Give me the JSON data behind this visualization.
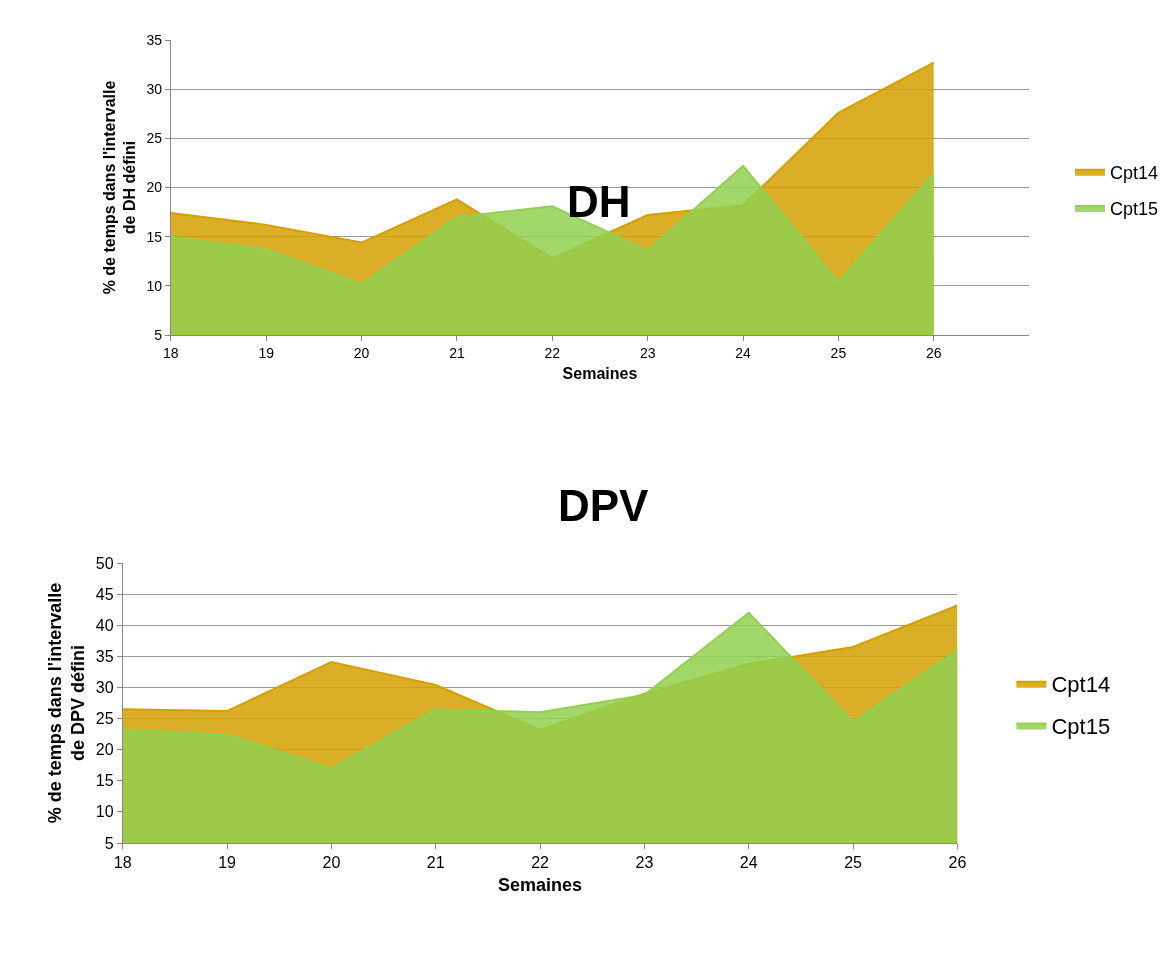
{
  "chart_data": [
    {
      "type": "area",
      "title": "DH",
      "xlabel": "Semaines",
      "ylabel": "% de temps dans l'intervalle de DH défini",
      "x": [
        18,
        19,
        20,
        21,
        22,
        23,
        24,
        25,
        26
      ],
      "xlim": [
        18,
        27
      ],
      "xticks": [
        18,
        19,
        20,
        21,
        22,
        23,
        24,
        25,
        26
      ],
      "ylim": [
        5,
        35
      ],
      "yticks": [
        5,
        10,
        15,
        20,
        25,
        30,
        35
      ],
      "grid": "y",
      "legend": "right",
      "series": [
        {
          "name": "Cpt14",
          "color": "#d4a000",
          "values": [
            17.4,
            16.2,
            14.4,
            18.8,
            12.8,
            17.2,
            18.2,
            27.6,
            32.7
          ]
        },
        {
          "name": "Cpt15",
          "color": "#92d050",
          "values": [
            15.0,
            13.7,
            10.2,
            17.0,
            18.1,
            13.6,
            22.2,
            10.4,
            21.4
          ]
        }
      ]
    },
    {
      "type": "area",
      "title": "DPV",
      "xlabel": "Semaines",
      "ylabel": "% de temps dans l'intervalle de DPV défini",
      "x": [
        18,
        19,
        20,
        21,
        22,
        23,
        24,
        25,
        26
      ],
      "xlim": [
        18,
        26
      ],
      "xticks": [
        18,
        19,
        20,
        21,
        22,
        23,
        24,
        25,
        26
      ],
      "ylim": [
        5,
        50
      ],
      "yticks": [
        5,
        10,
        15,
        20,
        25,
        30,
        35,
        40,
        45,
        50
      ],
      "grid": "y",
      "legend": "right",
      "series": [
        {
          "name": "Cpt14",
          "color": "#d4a000",
          "values": [
            26.5,
            26.2,
            34.1,
            30.4,
            23.2,
            29.0,
            33.8,
            36.5,
            43.2
          ]
        },
        {
          "name": "Cpt15",
          "color": "#92d050",
          "values": [
            23.3,
            22.4,
            17.0,
            26.5,
            26.0,
            28.8,
            42.0,
            24.5,
            36.0
          ]
        }
      ]
    }
  ]
}
